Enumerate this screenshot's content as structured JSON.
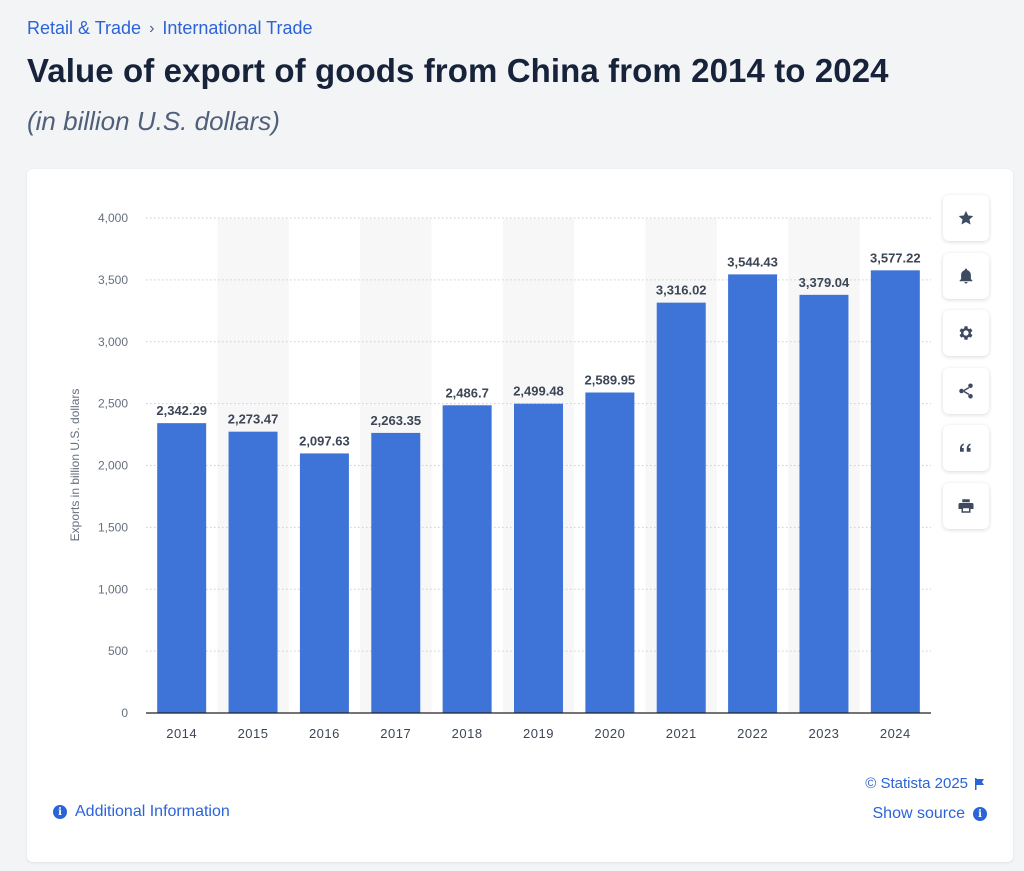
{
  "breadcrumb": {
    "items": [
      "Retail & Trade",
      "International Trade"
    ],
    "separator": "›"
  },
  "header": {
    "title": "Value of export of goods from China from 2014 to 2024",
    "subtitle": "(in billion U.S. dollars)"
  },
  "colors": {
    "bar": "#3e74d8",
    "accent": "#2b63d9",
    "band": "#f7f7f8",
    "grid": "#c9ced6"
  },
  "toolbar": {
    "buttons": [
      {
        "name": "favorite-button",
        "icon": "star-icon"
      },
      {
        "name": "notification-button",
        "icon": "bell-icon"
      },
      {
        "name": "settings-button",
        "icon": "gear-icon"
      },
      {
        "name": "share-button",
        "icon": "share-icon"
      },
      {
        "name": "cite-button",
        "icon": "quote-icon"
      },
      {
        "name": "print-button",
        "icon": "print-icon"
      }
    ]
  },
  "chart_data": {
    "type": "bar",
    "title": "",
    "xlabel": "",
    "ylabel": "Exports in billion U.S. dollars",
    "categories": [
      "2014",
      "2015",
      "2016",
      "2017",
      "2018",
      "2019",
      "2020",
      "2021",
      "2022",
      "2023",
      "2024"
    ],
    "values": [
      2342.29,
      2273.47,
      2097.63,
      2263.35,
      2486.7,
      2499.48,
      2589.95,
      3316.02,
      3544.43,
      3379.04,
      3577.22
    ],
    "value_labels": [
      "2,342.29",
      "2,273.47",
      "2,097.63",
      "2,263.35",
      "2,486.7",
      "2,499.48",
      "2,589.95",
      "3,316.02",
      "3,544.43",
      "3,379.04",
      "3,577.22"
    ],
    "yticks": [
      "0",
      "500",
      "1,000",
      "1,500",
      "2,000",
      "2,500",
      "3,000",
      "3,500",
      "4,000"
    ],
    "ylim": [
      0,
      4000
    ],
    "grid": true
  },
  "footer": {
    "copyright": "© Statista 2025",
    "additional_info": "Additional Information",
    "show_source": "Show source"
  }
}
